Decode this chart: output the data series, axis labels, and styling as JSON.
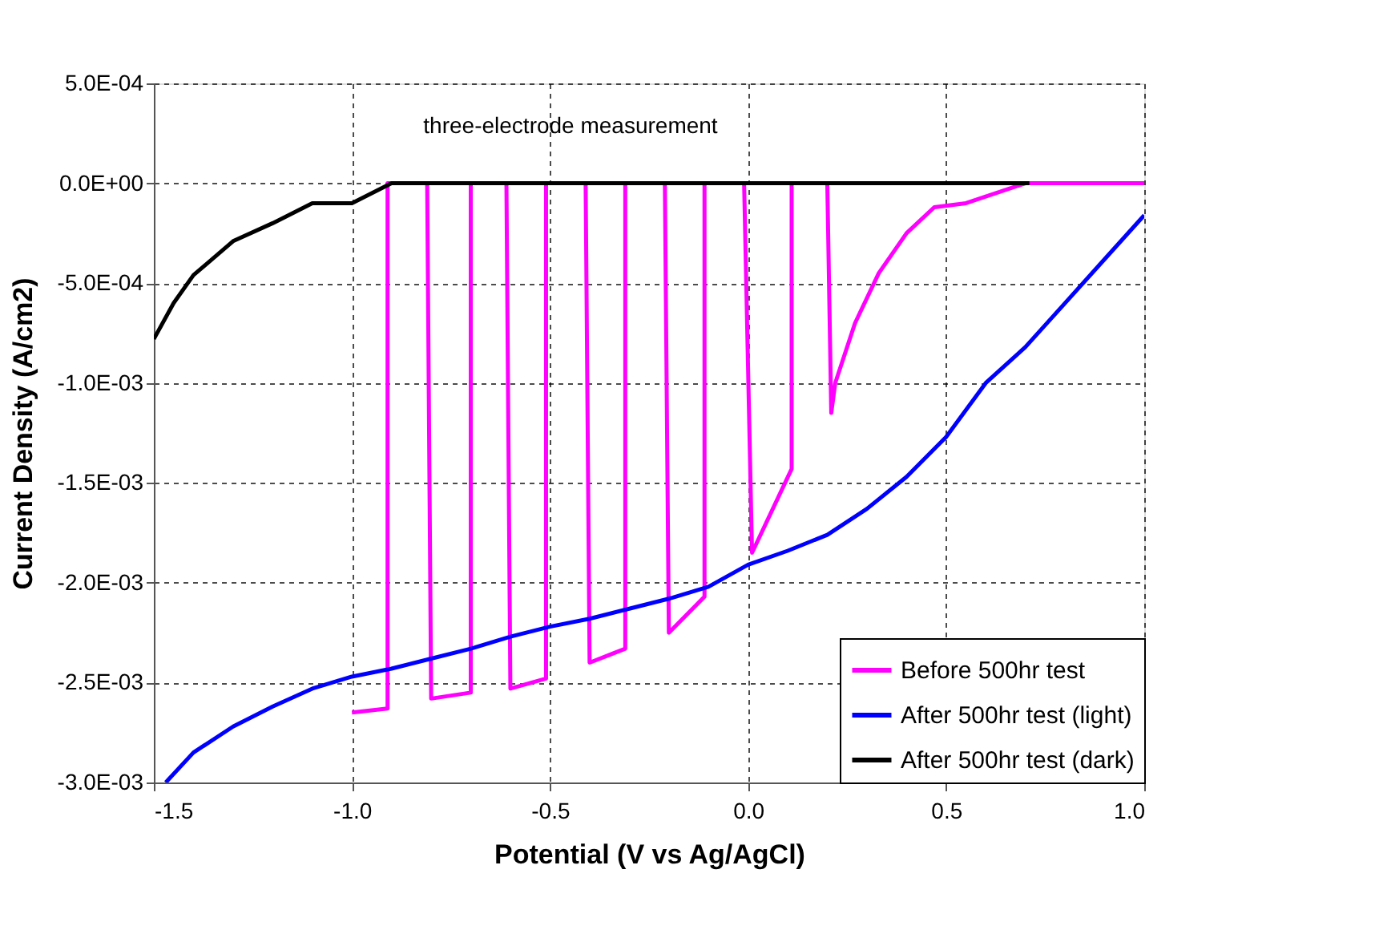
{
  "chart_data": {
    "type": "line",
    "xlabel": "Potential (V vs Ag/AgCl)",
    "ylabel": "Current Density (A/cm2)",
    "annotations": [
      "three-electrode measurement"
    ],
    "xlim": [
      -1.5,
      1.0
    ],
    "xticks": [
      {
        "value": -1.5,
        "label": "-1.5"
      },
      {
        "value": -1.0,
        "label": "-1.0"
      },
      {
        "value": -0.5,
        "label": "-0.5"
      },
      {
        "value": 0.0,
        "label": "0.0"
      },
      {
        "value": 0.5,
        "label": "0.5"
      },
      {
        "value": 1.0,
        "label": "1.0"
      }
    ],
    "ylim": [
      -0.003,
      0.0005
    ],
    "yticks": [
      {
        "value": 0.0005,
        "label": "5.0E-04"
      },
      {
        "value": 0.0,
        "label": "0.0E+00"
      },
      {
        "value": -0.0005,
        "label": "-5.0E-04"
      },
      {
        "value": -0.001,
        "label": "-1.0E-03"
      },
      {
        "value": -0.0015,
        "label": "-1.5E-03"
      },
      {
        "value": -0.002,
        "label": "-2.0E-03"
      },
      {
        "value": -0.0025,
        "label": "-2.5E-03"
      },
      {
        "value": -0.003,
        "label": "-3.0E-03"
      }
    ],
    "grid": true,
    "legend": "bottom right",
    "marker": "none",
    "line_style": "solid",
    "series": [
      {
        "name": "Before 500hr test",
        "color": "#ff00ff",
        "x": [
          -1.0,
          -0.91,
          -0.91,
          -0.81,
          -0.8,
          -0.7,
          -0.7,
          -0.61,
          -0.6,
          -0.51,
          -0.51,
          -0.41,
          -0.4,
          -0.31,
          -0.31,
          -0.21,
          -0.2,
          -0.11,
          -0.11,
          -0.01,
          0.01,
          0.11,
          0.11,
          0.2,
          0.21,
          0.22,
          0.27,
          0.33,
          0.4,
          0.47,
          0.55,
          0.7,
          1.0
        ],
        "values": [
          -0.00265,
          -0.00263,
          0.0,
          0.0,
          -0.00258,
          -0.00255,
          0.0,
          0.0,
          -0.00253,
          -0.00248,
          0.0,
          0.0,
          -0.0024,
          -0.00233,
          0.0,
          0.0,
          -0.00225,
          -0.00207,
          0.0,
          0.0,
          -0.00185,
          -0.00143,
          0.0,
          0.0,
          -0.00115,
          -0.001,
          -0.0007,
          -0.00045,
          -0.00025,
          -0.00012,
          -0.0001,
          0.0,
          0.0
        ]
      },
      {
        "name": "After 500hr test (light)",
        "color": "#0000ff",
        "x": [
          -1.47,
          -1.4,
          -1.3,
          -1.2,
          -1.1,
          -1.0,
          -0.9,
          -0.8,
          -0.7,
          -0.6,
          -0.5,
          -0.4,
          -0.3,
          -0.2,
          -0.1,
          0.0,
          0.1,
          0.2,
          0.3,
          0.4,
          0.5,
          0.6,
          0.7,
          0.8,
          0.9,
          1.0
        ],
        "values": [
          -0.003,
          -0.00285,
          -0.00272,
          -0.00262,
          -0.00253,
          -0.00247,
          -0.00243,
          -0.00238,
          -0.00233,
          -0.00227,
          -0.00222,
          -0.00218,
          -0.00213,
          -0.00208,
          -0.00202,
          -0.00191,
          -0.00184,
          -0.00176,
          -0.00163,
          -0.00147,
          -0.00127,
          -0.001,
          -0.00082,
          -0.0006,
          -0.00038,
          -0.00016
        ]
      },
      {
        "name": "After 500hr test (dark)",
        "color": "#000000",
        "x": [
          -1.5,
          -1.45,
          -1.4,
          -1.3,
          -1.2,
          -1.1,
          -1.0,
          -0.9,
          -0.7,
          -0.55,
          -0.5,
          -0.45,
          0.0,
          0.5,
          0.71
        ],
        "values": [
          -0.00078,
          -0.0006,
          -0.00046,
          -0.00029,
          -0.0002,
          -0.0001,
          -0.0001,
          0.0,
          0.0,
          0.0,
          0.0,
          0.0,
          0.0,
          0.0,
          0.0
        ]
      }
    ]
  }
}
